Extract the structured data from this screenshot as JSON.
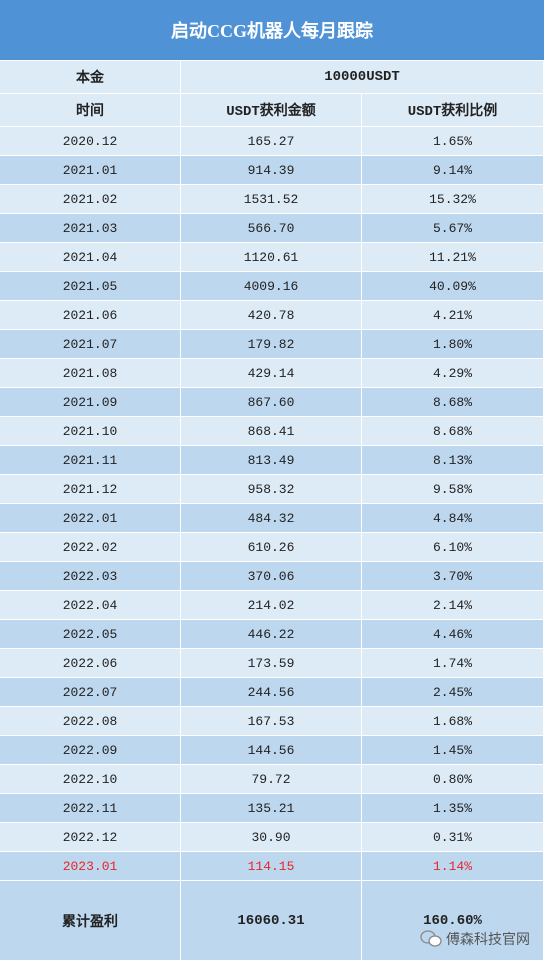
{
  "header": {
    "title": "启动CCG机器人每月跟踪"
  },
  "table": {
    "principal": [
      "本金",
      "10000USDT"
    ],
    "columns": [
      "时间",
      "USDT获利金额",
      "USDT获利比例"
    ],
    "rows": [
      [
        "2020.12",
        "165.27",
        "1.65%"
      ],
      [
        "2021.01",
        "914.39",
        "9.14%"
      ],
      [
        "2021.02",
        "1531.52",
        "15.32%"
      ],
      [
        "2021.03",
        "566.70",
        "5.67%"
      ],
      [
        "2021.04",
        "1120.61",
        "11.21%"
      ],
      [
        "2021.05",
        "4009.16",
        "40.09%"
      ],
      [
        "2021.06",
        "420.78",
        "4.21%"
      ],
      [
        "2021.07",
        "179.82",
        "1.80%"
      ],
      [
        "2021.08",
        "429.14",
        "4.29%"
      ],
      [
        "2021.09",
        "867.60",
        "8.68%"
      ],
      [
        "2021.10",
        "868.41",
        "8.68%"
      ],
      [
        "2021.11",
        "813.49",
        "8.13%"
      ],
      [
        "2021.12",
        "958.32",
        "9.58%"
      ],
      [
        "2022.01",
        "484.32",
        "4.84%"
      ],
      [
        "2022.02",
        "610.26",
        "6.10%"
      ],
      [
        "2022.03",
        "370.06",
        "3.70%"
      ],
      [
        "2022.04",
        "214.02",
        "2.14%"
      ],
      [
        "2022.05",
        "446.22",
        "4.46%"
      ],
      [
        "2022.06",
        "173.59",
        "1.74%"
      ],
      [
        "2022.07",
        "244.56",
        "2.45%"
      ],
      [
        "2022.08",
        "167.53",
        "1.68%"
      ],
      [
        "2022.09",
        "144.56",
        "1.45%"
      ],
      [
        "2022.10",
        "79.72",
        "0.80%"
      ],
      [
        "2022.11",
        "135.21",
        "1.35%"
      ],
      [
        "2022.12",
        "30.90",
        "0.31%"
      ],
      [
        "2023.01",
        "114.15",
        "1.14%"
      ]
    ],
    "total": [
      "累计盈利",
      "16060.31",
      "160.60%"
    ]
  },
  "watermark": "傅森科技官网"
}
